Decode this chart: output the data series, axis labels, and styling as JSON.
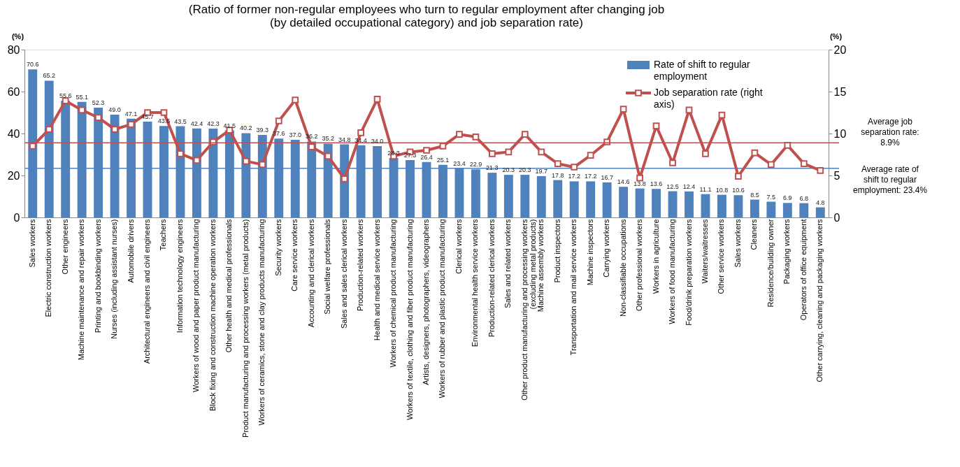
{
  "chart_data": {
    "type": "bar",
    "title": "(Ratio of former non-regular employees who turn to regular employment after changing job\n(by detailed occupational category) and job separation rate)",
    "ylabel": "(%)",
    "y2label": "(%)",
    "categories": [
      "Sales workers",
      "Electric construction workers",
      "Other engineers",
      "Machine maintenance and repair workers",
      "Printing and bookbinding workers",
      "Nurses (including assistant nurses)",
      "Automobile drivers",
      "Architectural engineers and civil engineers",
      "Teachers",
      "Information technology engineers",
      "Workers of wood and paper product manufacturing",
      "Block fixing and construction machine operation workers",
      "Other health and medical professionals",
      "Product manufacturing and processing workers (metal products)",
      "Workers of ceramics, stone and clay products manufacturing",
      "Security workers",
      "Care service workers",
      "Accounting and clerical workers",
      "Social welfare professionals",
      "Sales and sales clerical workers",
      "Production-related workers",
      "Health and medical service workers",
      "Workers of chemical product manufacturing",
      "Workers of textile, clothing and fiber product manufacturing",
      "Artists, designers, photographers, videographers",
      "Workers of rubber and plastic product manufacturing",
      "Clerical workers",
      "Environmental health service workers",
      "Production-related clerical workers",
      "Sales and related workers",
      "Other product manufacturing and processing workers (excluding metal products)",
      "Machine assembly workers",
      "Product inspectors",
      "Transportation and mail service workers",
      "Machine inspectors",
      "Carrying workers",
      "Non-classifiable occupations",
      "Other professional workers",
      "Workers in agriculture",
      "Workers of food manufacturing",
      "Food/drink preparation workers",
      "Waiters/waitresses",
      "Other service workers",
      "Sales workers",
      "Cleaners",
      "Residence/building owner",
      "Packaging workers",
      "Operators of office equipment",
      "Other carrying, cleaning and packaging workers"
    ],
    "series": [
      {
        "name": "Rate of shift to regular employment",
        "color": "#4f81bd",
        "values": [
          70.6,
          65.2,
          55.6,
          55.1,
          52.3,
          49.0,
          47.1,
          45.7,
          43.6,
          43.5,
          42.4,
          42.3,
          41.5,
          40.2,
          39.3,
          37.6,
          37.0,
          36.2,
          35.2,
          34.8,
          34.4,
          34.0,
          28.3,
          27.3,
          26.4,
          25.1,
          23.4,
          22.9,
          21.3,
          20.3,
          20.3,
          19.7,
          17.8,
          17.2,
          17.2,
          16.7,
          14.6,
          13.8,
          13.6,
          12.5,
          12.4,
          11.1,
          10.8,
          10.6,
          8.5,
          7.5,
          6.9,
          6.8,
          4.8
        ],
        "value_labels": [
          "70.6",
          "65.2",
          "55.6",
          "55.1",
          "52.3",
          "49.0",
          "47.1",
          "45.7",
          "43.6",
          "43.5",
          "42.4",
          "42.3",
          "41.5",
          "40.2",
          "39.3",
          "37.6",
          "37.0",
          "36.2",
          "35.2",
          "34.8",
          "34.4",
          "34.0",
          "28.3",
          "27.3",
          "26.4",
          "25.1",
          "23.4",
          "22.9",
          "21.3",
          "20.3",
          "20.3",
          "19.7",
          "17.8",
          "17.2",
          "17.2",
          "16.7",
          "14.6",
          "13.8",
          "13.6",
          "12.5",
          "12.4",
          "11.1",
          "10.8",
          "10.6",
          "8.5",
          "7.5",
          "6.9",
          "6.8",
          "4.8"
        ]
      },
      {
        "name": "Job separation rate (right axis)",
        "type": "line",
        "axis": "y2",
        "color": "#c0504d",
        "marker": "square",
        "values": [
          8.5,
          10.5,
          13.9,
          12.8,
          11.9,
          10.5,
          11.1,
          12.5,
          12.5,
          7.6,
          6.8,
          9.0,
          10.4,
          6.7,
          6.3,
          11.5,
          14.0,
          8.4,
          7.3,
          4.6,
          10.1,
          14.1,
          7.3,
          7.8,
          8.0,
          8.5,
          9.9,
          9.6,
          7.6,
          7.8,
          9.9,
          7.8,
          6.4,
          6.0,
          7.4,
          9.0,
          12.9,
          4.7,
          10.9,
          6.5,
          12.8,
          7.6,
          12.2,
          4.9,
          7.7,
          6.3,
          8.6,
          6.4,
          5.6
        ]
      }
    ],
    "ylim": [
      0,
      80
    ],
    "yticks": [
      0,
      20,
      40,
      60,
      80
    ],
    "y2lim": [
      0,
      20
    ],
    "y2ticks": [
      0,
      5,
      10,
      15,
      20
    ],
    "ref_lines": [
      {
        "axis": "y2",
        "value": 8.9,
        "label": "Average job separation rate: 8.9%",
        "color": "#c0504d"
      },
      {
        "axis": "y",
        "value": 23.4,
        "label": "Average rate of shift to regular employment: 23.4%",
        "color": "#4f81bd"
      }
    ],
    "grid": false,
    "legend": "top right"
  }
}
